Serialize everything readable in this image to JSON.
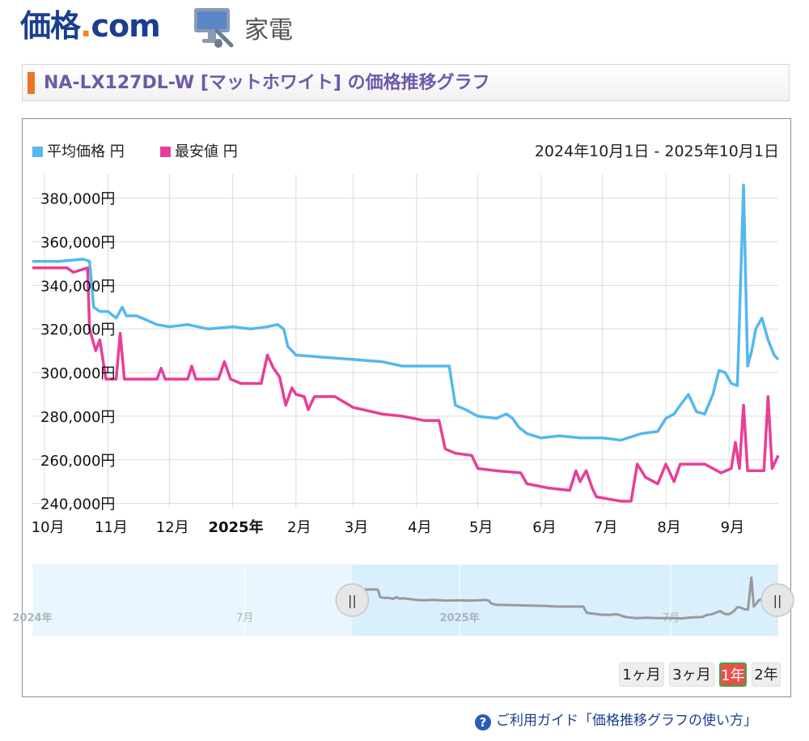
{
  "header": {
    "logo_main": "価格",
    "logo_dot": ".",
    "logo_com": "com",
    "category_icon": "monitor-icon",
    "category_label": "家電"
  },
  "title": {
    "text": "NA-LX127DL-W [マットホワイト] の価格推移グラフ",
    "accent_color": "#ee7423"
  },
  "legend": {
    "avg_label": "平均価格 円",
    "min_label": "最安値 円",
    "date_range": "2024年10月1日 - 2025年10月1日"
  },
  "colors": {
    "avg": "#55b8ee",
    "min": "#e83e98",
    "navigator_line": "#9a9a9a",
    "navigator_bg": "#eaf6fd",
    "navigator_selected": "#d9effc"
  },
  "range_buttons": [
    {
      "label": "1ヶ月",
      "active": false
    },
    {
      "label": "3ヶ月",
      "active": false
    },
    {
      "label": "1年",
      "active": true
    },
    {
      "label": "2年",
      "active": false
    }
  ],
  "guide": {
    "icon": "help-icon",
    "text": "ご利用ガイド「価格推移グラフの使い方」"
  },
  "chart_data": {
    "type": "line",
    "x_start": "2024-10-01",
    "x_end": "2025-10-01",
    "x_min": "2024-09-25",
    "x_max": "2025-09-25",
    "y_min": 238000,
    "y_max": 391000,
    "y_ticks": [
      240000,
      260000,
      280000,
      300000,
      320000,
      340000,
      360000,
      380000
    ],
    "y_tick_labels": [
      "240,000円",
      "260,000円",
      "280,000円",
      "300,000円",
      "320,000円",
      "340,000円",
      "360,000円",
      "380,000円"
    ],
    "x_ticks": [
      {
        "date": "2024-10-01",
        "label": "10月",
        "bold": false
      },
      {
        "date": "2024-11-01",
        "label": "11月",
        "bold": false
      },
      {
        "date": "2024-12-01",
        "label": "12月",
        "bold": false
      },
      {
        "date": "2025-01-01",
        "label": "2025年",
        "bold": true
      },
      {
        "date": "2025-02-01",
        "label": "2月",
        "bold": false
      },
      {
        "date": "2025-03-01",
        "label": "3月",
        "bold": false
      },
      {
        "date": "2025-04-01",
        "label": "4月",
        "bold": false
      },
      {
        "date": "2025-05-01",
        "label": "5月",
        "bold": false
      },
      {
        "date": "2025-06-01",
        "label": "6月",
        "bold": false
      },
      {
        "date": "2025-07-01",
        "label": "7月",
        "bold": false
      },
      {
        "date": "2025-08-01",
        "label": "8月",
        "bold": false
      },
      {
        "date": "2025-09-01",
        "label": "9月",
        "bold": false
      }
    ],
    "grid": true,
    "series": [
      {
        "name": "平均価格",
        "points": [
          [
            "2024-09-25",
            351000
          ],
          [
            "2024-10-08",
            351000
          ],
          [
            "2024-10-20",
            352000
          ],
          [
            "2024-10-23",
            351000
          ],
          [
            "2024-10-25",
            330000
          ],
          [
            "2024-10-28",
            328000
          ],
          [
            "2024-11-01",
            328000
          ],
          [
            "2024-11-05",
            325000
          ],
          [
            "2024-11-08",
            330000
          ],
          [
            "2024-11-10",
            326000
          ],
          [
            "2024-11-15",
            326000
          ],
          [
            "2024-11-20",
            324000
          ],
          [
            "2024-11-25",
            322000
          ],
          [
            "2024-12-01",
            321000
          ],
          [
            "2024-12-10",
            322000
          ],
          [
            "2024-12-20",
            320000
          ],
          [
            "2025-01-01",
            321000
          ],
          [
            "2025-01-10",
            320000
          ],
          [
            "2025-01-18",
            321000
          ],
          [
            "2025-01-23",
            322000
          ],
          [
            "2025-01-26",
            320000
          ],
          [
            "2025-01-28",
            312000
          ],
          [
            "2025-02-01",
            308000
          ],
          [
            "2025-02-15",
            307000
          ],
          [
            "2025-03-01",
            306000
          ],
          [
            "2025-03-15",
            305000
          ],
          [
            "2025-03-25",
            303000
          ],
          [
            "2025-04-10",
            303000
          ],
          [
            "2025-04-17",
            303000
          ],
          [
            "2025-04-20",
            285000
          ],
          [
            "2025-04-25",
            283000
          ],
          [
            "2025-05-01",
            280000
          ],
          [
            "2025-05-10",
            279000
          ],
          [
            "2025-05-15",
            281000
          ],
          [
            "2025-05-18",
            279000
          ],
          [
            "2025-05-21",
            275000
          ],
          [
            "2025-05-25",
            272000
          ],
          [
            "2025-06-01",
            270000
          ],
          [
            "2025-06-10",
            271000
          ],
          [
            "2025-06-20",
            270000
          ],
          [
            "2025-07-01",
            270000
          ],
          [
            "2025-07-10",
            269000
          ],
          [
            "2025-07-20",
            272000
          ],
          [
            "2025-07-28",
            273000
          ],
          [
            "2025-08-01",
            279000
          ],
          [
            "2025-08-05",
            281000
          ],
          [
            "2025-08-08",
            285000
          ],
          [
            "2025-08-12",
            290000
          ],
          [
            "2025-08-16",
            282000
          ],
          [
            "2025-08-20",
            281000
          ],
          [
            "2025-08-24",
            290000
          ],
          [
            "2025-08-27",
            301000
          ],
          [
            "2025-08-30",
            300000
          ],
          [
            "2025-09-02",
            295000
          ],
          [
            "2025-09-05",
            294000
          ],
          [
            "2025-09-08",
            386000
          ],
          [
            "2025-09-10",
            303000
          ],
          [
            "2025-09-12",
            310000
          ],
          [
            "2025-09-14",
            320000
          ],
          [
            "2025-09-17",
            325000
          ],
          [
            "2025-09-20",
            315000
          ],
          [
            "2025-09-23",
            308000
          ],
          [
            "2025-09-25",
            306000
          ]
        ]
      },
      {
        "name": "最安値",
        "points": [
          [
            "2024-09-25",
            348000
          ],
          [
            "2024-10-12",
            348000
          ],
          [
            "2024-10-15",
            346000
          ],
          [
            "2024-10-22",
            348000
          ],
          [
            "2024-10-23",
            320000
          ],
          [
            "2024-10-26",
            310000
          ],
          [
            "2024-10-28",
            315000
          ],
          [
            "2024-10-31",
            297000
          ],
          [
            "2024-11-05",
            297000
          ],
          [
            "2024-11-07",
            318000
          ],
          [
            "2024-11-09",
            297000
          ],
          [
            "2024-11-25",
            297000
          ],
          [
            "2024-11-27",
            302000
          ],
          [
            "2024-11-29",
            297000
          ],
          [
            "2024-12-10",
            297000
          ],
          [
            "2024-12-12",
            303000
          ],
          [
            "2024-12-14",
            297000
          ],
          [
            "2024-12-25",
            297000
          ],
          [
            "2024-12-28",
            305000
          ],
          [
            "2024-12-31",
            297000
          ],
          [
            "2025-01-05",
            295000
          ],
          [
            "2025-01-15",
            295000
          ],
          [
            "2025-01-18",
            308000
          ],
          [
            "2025-01-21",
            302000
          ],
          [
            "2025-01-24",
            298000
          ],
          [
            "2025-01-27",
            285000
          ],
          [
            "2025-01-30",
            293000
          ],
          [
            "2025-02-01",
            290000
          ],
          [
            "2025-02-05",
            289000
          ],
          [
            "2025-02-07",
            283000
          ],
          [
            "2025-02-10",
            289000
          ],
          [
            "2025-02-20",
            289000
          ],
          [
            "2025-03-01",
            284000
          ],
          [
            "2025-03-15",
            281000
          ],
          [
            "2025-03-25",
            280000
          ],
          [
            "2025-04-05",
            278000
          ],
          [
            "2025-04-12",
            278000
          ],
          [
            "2025-04-15",
            265000
          ],
          [
            "2025-04-20",
            263000
          ],
          [
            "2025-04-28",
            262000
          ],
          [
            "2025-05-01",
            256000
          ],
          [
            "2025-05-10",
            255000
          ],
          [
            "2025-05-22",
            254000
          ],
          [
            "2025-05-25",
            249000
          ],
          [
            "2025-06-05",
            247000
          ],
          [
            "2025-06-15",
            246000
          ],
          [
            "2025-06-18",
            255000
          ],
          [
            "2025-06-20",
            250000
          ],
          [
            "2025-06-23",
            255000
          ],
          [
            "2025-06-26",
            247000
          ],
          [
            "2025-06-28",
            243000
          ],
          [
            "2025-07-10",
            241000
          ],
          [
            "2025-07-15",
            241000
          ],
          [
            "2025-07-18",
            258000
          ],
          [
            "2025-07-22",
            252000
          ],
          [
            "2025-07-28",
            249000
          ],
          [
            "2025-08-01",
            258000
          ],
          [
            "2025-08-05",
            250000
          ],
          [
            "2025-08-08",
            258000
          ],
          [
            "2025-08-20",
            258000
          ],
          [
            "2025-08-24",
            256000
          ],
          [
            "2025-08-28",
            254000
          ],
          [
            "2025-09-02",
            256000
          ],
          [
            "2025-09-04",
            268000
          ],
          [
            "2025-09-06",
            256000
          ],
          [
            "2025-09-08",
            285000
          ],
          [
            "2025-09-10",
            255000
          ],
          [
            "2025-09-18",
            255000
          ],
          [
            "2025-09-20",
            289000
          ],
          [
            "2025-09-22",
            256000
          ],
          [
            "2025-09-25",
            262000
          ]
        ]
      }
    ],
    "navigator": {
      "x_min": "2024-01-01",
      "x_max": "2025-10-01",
      "selected_start": "2024-10-01",
      "selected_end": "2025-10-01",
      "labels": [
        {
          "date": "2024-01-01",
          "label": "2024年",
          "bold": true
        },
        {
          "date": "2024-07-01",
          "label": "7月",
          "bold": false
        },
        {
          "date": "2025-01-01",
          "label": "2025年",
          "bold": true
        },
        {
          "date": "2025-07-01",
          "label": "7月",
          "bold": false
        }
      ],
      "handle_glyph": "||"
    }
  }
}
